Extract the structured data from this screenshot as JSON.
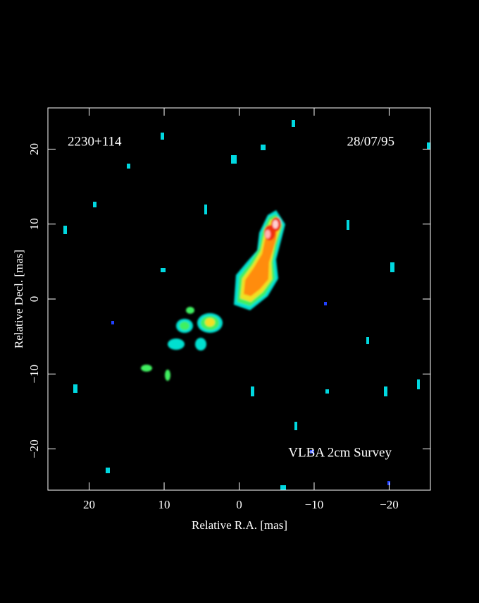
{
  "chart_data": {
    "type": "image",
    "annotations": [
      "2230+114",
      "28/07/95",
      "VLBA 2cm Survey"
    ],
    "x_label": "Relative R.A. [mas]",
    "y_label": "Relative Decl. [mas]",
    "xlim": [
      25.5,
      -25.5
    ],
    "ylim": [
      -25.5,
      25.5
    ],
    "xticks": [
      20,
      10,
      0,
      {
        "value": -10,
        "label": "−10"
      },
      {
        "value": -20,
        "label": "−20"
      }
    ],
    "yticks": [
      {
        "value": -20,
        "label": "−20"
      },
      {
        "value": -10,
        "label": "−10"
      },
      0,
      10,
      20
    ]
  }
}
